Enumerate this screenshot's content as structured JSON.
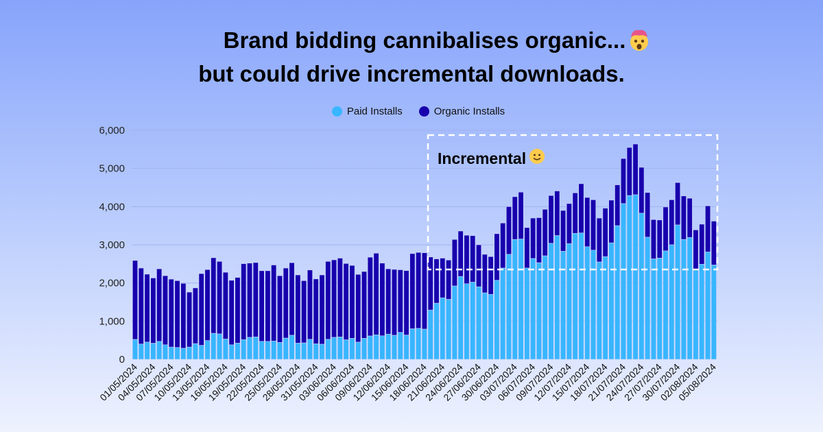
{
  "title_line1": "Brand bidding cannibalises organic...",
  "title_line2": "but could drive incremental downloads.",
  "title_emoji_icon": "exploding-head-emoji",
  "annotation": {
    "label": "Incremental",
    "icon": "slightly-smiling-face-emoji"
  },
  "chart_data": {
    "type": "bar",
    "stacked": true,
    "title": "",
    "xlabel": "",
    "ylabel": "",
    "ylim": [
      0,
      6000
    ],
    "yticks": [
      0,
      1000,
      2000,
      3000,
      4000,
      5000,
      6000
    ],
    "ytick_labels": [
      "0",
      "1,000",
      "2,000",
      "3,000",
      "4,000",
      "5,000",
      "6,000"
    ],
    "grid": "horizontal",
    "legend_position": "top-center",
    "x_start": "01/05/2024",
    "x_end": "05/08/2024",
    "xtick_labels": [
      "01/05/2024",
      "04/05/2024",
      "07/05/2024",
      "10/05/2024",
      "13/05/2024",
      "16/05/2024",
      "19/05/2024",
      "22/05/2024",
      "25/05/2024",
      "28/05/2024",
      "31/05/2024",
      "03/06/2024",
      "06/06/2024",
      "09/06/2024",
      "12/06/2024",
      "15/06/2024",
      "18/06/2024",
      "21/06/2024",
      "24/06/2024",
      "27/06/2024",
      "30/06/2024",
      "03/07/2024",
      "06/07/2024",
      "09/07/2024",
      "12/07/2024",
      "15/07/2024",
      "18/07/2024",
      "21/07/2024",
      "24/07/2024",
      "27/07/2024",
      "30/07/2024",
      "02/08/2024",
      "05/08/2024"
    ],
    "series": [
      {
        "name": "Paid Installs",
        "color": "#38b6ff",
        "values": [
          520,
          400,
          450,
          420,
          470,
          380,
          320,
          310,
          290,
          320,
          410,
          365,
          490,
          680,
          665,
          530,
          380,
          425,
          515,
          575,
          585,
          470,
          470,
          480,
          440,
          555,
          630,
          425,
          430,
          525,
          405,
          395,
          525,
          575,
          585,
          510,
          550,
          450,
          550,
          610,
          640,
          615,
          660,
          630,
          705,
          635,
          800,
          810,
          790,
          1290,
          1470,
          1610,
          1570,
          1920,
          2170,
          1980,
          2020,
          1900,
          1740,
          1700,
          2070,
          2390,
          2750,
          3140,
          3150,
          2390,
          2640,
          2530,
          2710,
          3040,
          3240,
          2830,
          3030,
          3300,
          3310,
          2950,
          2860,
          2550,
          2690,
          3050,
          3500,
          4080,
          4290,
          4310,
          3830,
          3200,
          2630,
          2650,
          2840,
          3000,
          3520,
          3140,
          3190,
          2360,
          2490,
          2810,
          2470
        ]
      },
      {
        "name": "Organic Installs",
        "color": "#1800ad",
        "values": [
          2070,
          1990,
          1780,
          1710,
          1900,
          1810,
          1780,
          1750,
          1700,
          1440,
          1460,
          1880,
          1860,
          1980,
          1900,
          1750,
          1690,
          1720,
          1990,
          1945,
          1950,
          1850,
          1850,
          1990,
          1750,
          1835,
          1900,
          1785,
          1630,
          1815,
          1700,
          1815,
          2040,
          2030,
          2065,
          2000,
          1910,
          1775,
          1750,
          2065,
          2140,
          1905,
          1710,
          1725,
          1640,
          1690,
          1970,
          1990,
          2000,
          1390,
          1160,
          1040,
          1030,
          1220,
          1190,
          1270,
          1220,
          1100,
          1010,
          990,
          1220,
          1180,
          1250,
          1120,
          1230,
          1060,
          1060,
          1180,
          1220,
          1250,
          1170,
          1070,
          1050,
          1060,
          1290,
          1290,
          1320,
          1150,
          1270,
          1120,
          1070,
          1180,
          1260,
          1330,
          1200,
          1170,
          1030,
          1000,
          1150,
          1180,
          1110,
          1140,
          1030,
          1030,
          1050,
          1210,
          1150
        ]
      }
    ]
  }
}
